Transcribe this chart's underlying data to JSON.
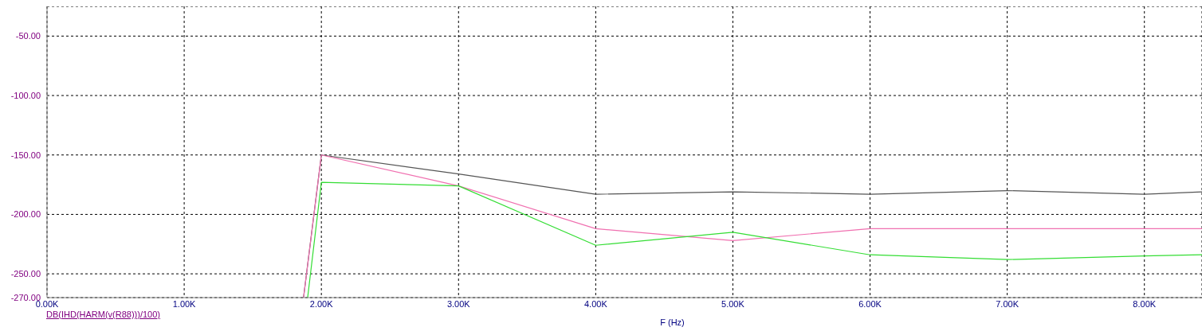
{
  "chart_data": {
    "type": "line",
    "xlabel": "F (Hz)",
    "annotations": [
      "DB(IHD(HARM(v(R88)))/100)"
    ],
    "xlim": [
      0,
      8.42
    ],
    "ylim": [
      -270,
      -25
    ],
    "xticks": [
      {
        "value": 0,
        "label": "0.00K"
      },
      {
        "value": 1,
        "label": "1.00K"
      },
      {
        "value": 2,
        "label": "2.00K"
      },
      {
        "value": 3,
        "label": "3.00K"
      },
      {
        "value": 4,
        "label": "4.00K"
      },
      {
        "value": 5,
        "label": "5.00K"
      },
      {
        "value": 6,
        "label": "6.00K"
      },
      {
        "value": 7,
        "label": "7.00K"
      },
      {
        "value": 8,
        "label": "8.00K"
      }
    ],
    "yticks": [
      {
        "value": -270,
        "label": "-270.00"
      },
      {
        "value": -250,
        "label": "-250.00"
      },
      {
        "value": -200,
        "label": "-200.00"
      },
      {
        "value": -150,
        "label": "-150.00"
      },
      {
        "value": -100,
        "label": "-100.00"
      },
      {
        "value": -50,
        "label": "-50.00"
      }
    ],
    "grid": true,
    "line_style": "solid",
    "marker": "none",
    "series": [
      {
        "color": "#555555",
        "x": [
          1.87,
          2,
          3,
          4,
          5,
          6,
          7,
          8,
          8.42
        ],
        "values": [
          -270,
          -150,
          -166,
          -183,
          -181,
          -183,
          -180,
          -183,
          -181
        ]
      },
      {
        "color": "#f070b0",
        "x": [
          1.87,
          2,
          3,
          4,
          5,
          6,
          7,
          8,
          8.42
        ],
        "values": [
          -270,
          -150,
          -176,
          -212,
          -222,
          -212,
          -212,
          -212,
          -212
        ]
      },
      {
        "color": "#33dd33",
        "x": [
          1.9,
          2,
          3,
          4,
          5,
          6,
          7,
          8,
          8.42
        ],
        "values": [
          -270,
          -173,
          -176,
          -226,
          -215,
          -234,
          -238,
          -235,
          -234
        ]
      }
    ]
  }
}
